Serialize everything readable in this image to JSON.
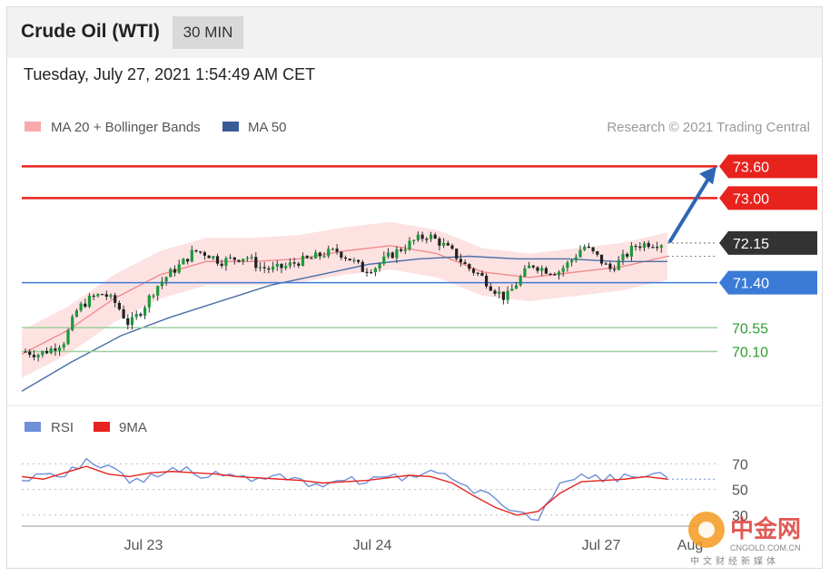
{
  "header": {
    "instrument": "Crude Oil (WTI)",
    "interval": "30 MIN"
  },
  "timestamp": "Tuesday, July 27, 2021 1:54:49 AM CET",
  "legend": {
    "ma20": "MA 20 + Bollinger Bands",
    "ma50": "MA 50",
    "research": "Research © 2021 Trading Central",
    "rsi": "RSI",
    "ma9": "9MA"
  },
  "colors": {
    "resistance": "#e8231e",
    "support": "#3b7bd8",
    "current": "#333333",
    "minor_support": "#2e9e2e",
    "ma20": "#f28b8b",
    "ma50": "#4a6fa5",
    "bollinger": "#fde2e2",
    "rsi": "#6f8fd8",
    "ma9": "#e8231e",
    "arrow": "#2f66b3"
  },
  "chart_data": [
    {
      "type": "candlestick",
      "title": "",
      "x_labels": [
        "Jul 23",
        "Jul 24",
        "Jul 27",
        "Aug"
      ],
      "y_range": [
        69.2,
        74.0
      ],
      "levels": [
        {
          "name": "resistance-2",
          "value": 73.6,
          "label": "73.60",
          "kind": "resistance"
        },
        {
          "name": "resistance-1",
          "value": 73.0,
          "label": "73.00",
          "kind": "resistance"
        },
        {
          "name": "current",
          "value": 72.15,
          "label": "72.15",
          "kind": "current"
        },
        {
          "name": "support-1",
          "value": 71.4,
          "label": "71.40",
          "kind": "support"
        },
        {
          "name": "support-2",
          "value": 70.55,
          "label": "70.55",
          "kind": "minor"
        },
        {
          "name": "support-3",
          "value": 70.1,
          "label": "70.10",
          "kind": "minor"
        }
      ],
      "close_path": [
        70.1,
        70.05,
        70.15,
        70.3,
        70.9,
        71.1,
        71.2,
        71.0,
        70.6,
        70.9,
        71.3,
        71.55,
        71.75,
        72.0,
        71.95,
        71.8,
        71.85,
        71.9,
        71.7,
        71.65,
        71.7,
        71.8,
        71.85,
        71.95,
        72.0,
        71.85,
        71.65,
        71.7,
        71.9,
        72.05,
        72.2,
        72.3,
        72.15,
        71.95,
        71.7,
        71.55,
        71.3,
        71.1,
        71.45,
        71.75,
        71.65,
        71.6,
        71.8,
        72.1,
        71.9,
        71.65,
        71.85,
        72.1,
        72.15,
        72.15
      ],
      "ma50_path": [
        69.35,
        69.9,
        70.4,
        70.75,
        71.05,
        71.35,
        71.55,
        71.75,
        71.85,
        71.9,
        71.85,
        71.85,
        71.8,
        71.8
      ],
      "ma20_path": [
        70.05,
        70.5,
        71.1,
        71.55,
        71.8,
        71.8,
        71.85,
        72.0,
        72.1,
        71.95,
        71.6,
        71.5,
        71.6,
        71.7,
        71.9
      ]
    },
    {
      "type": "line",
      "title": "",
      "y_ticks": [
        70,
        50,
        30
      ],
      "y_range": [
        25,
        85
      ],
      "series": [
        {
          "name": "RSI",
          "values": [
            57,
            62,
            60,
            74,
            69,
            55,
            62,
            67,
            62,
            64,
            60,
            59,
            62,
            58,
            52,
            57,
            55,
            60,
            61,
            65,
            58,
            47,
            43,
            33,
            26,
            55,
            62,
            56,
            62,
            60,
            59
          ]
        },
        {
          "name": "9MA",
          "values": [
            60,
            58,
            63,
            68,
            62,
            60,
            63,
            64,
            63,
            62,
            60,
            59,
            58,
            57,
            55,
            56,
            57,
            59,
            61,
            60,
            55,
            45,
            36,
            30,
            33,
            47,
            56,
            57,
            58,
            60,
            58
          ]
        }
      ]
    }
  ]
}
